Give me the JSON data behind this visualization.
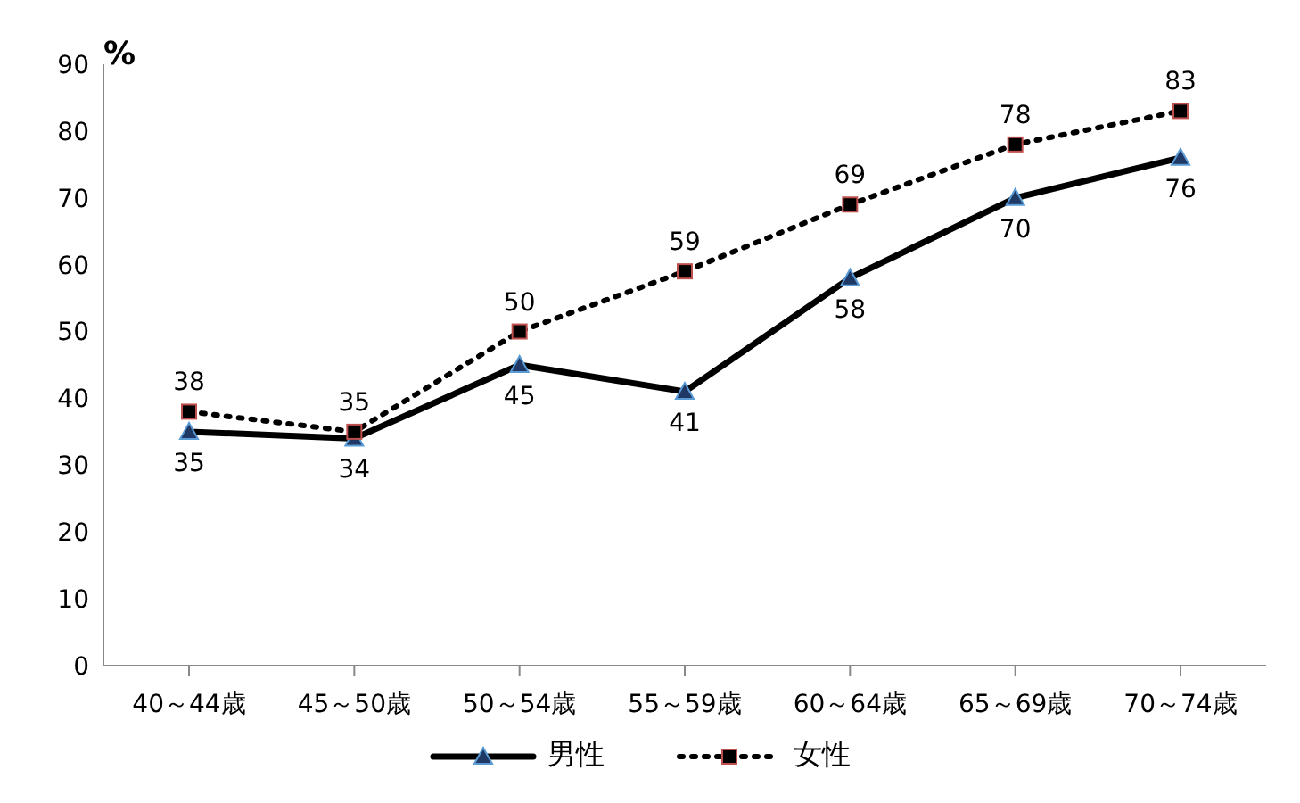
{
  "chart_data": {
    "type": "line",
    "ylabel": "%",
    "categories": [
      "40～44歳",
      "45～50歳",
      "50～54歳",
      "55～59歳",
      "60～64歳",
      "65～69歳",
      "70～74歳"
    ],
    "series": [
      {
        "name": "男性",
        "color": "#000000",
        "values": [
          35,
          34,
          45,
          41,
          58,
          70,
          76
        ],
        "marker": "triangle",
        "line_style": "solid"
      },
      {
        "name": "女性",
        "color": "#000000",
        "values": [
          38,
          35,
          50,
          59,
          69,
          78,
          83
        ],
        "marker": "square",
        "line_style": "dotted"
      }
    ],
    "ylim": [
      0,
      90
    ],
    "yticks": [
      0,
      10,
      20,
      30,
      40,
      50,
      60,
      70,
      80,
      90
    ],
    "grid": false,
    "legend": "bottom",
    "data_labels": true
  }
}
